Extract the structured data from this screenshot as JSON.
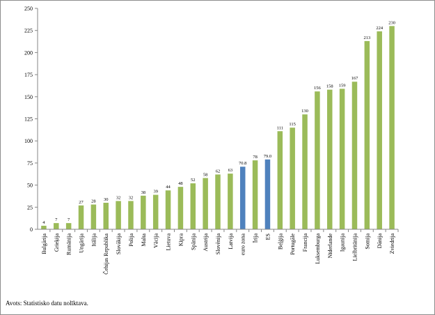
{
  "chart_data": {
    "type": "bar",
    "title": "",
    "xlabel": "",
    "ylabel": "",
    "ylim": [
      0,
      250
    ],
    "yticks": [
      0,
      25,
      50,
      75,
      100,
      125,
      150,
      175,
      200,
      225,
      250
    ],
    "grid": false,
    "legend": "none",
    "categories": [
      "Bulgārija",
      "Grieķija",
      "Rumānija",
      "Ungārija",
      "Itālija",
      "Čehijas Republika",
      "Slovākija",
      "Polija",
      "Malta",
      "Vācija",
      "Lietuva",
      "Kipra",
      "Spānija",
      "Austrija",
      "Slovēnija",
      "Latvija",
      "euro zona",
      "Īrija",
      "ES",
      "Beļģija",
      "Portugāle",
      "Francija",
      "Luksemburga",
      "Nīderlande",
      "Igaunija",
      "Lielbritānija",
      "Somija",
      "Dānija",
      "Zviedrija"
    ],
    "values": [
      4,
      7,
      7,
      27,
      28,
      30,
      32,
      32,
      38,
      39,
      44,
      48,
      52,
      58,
      62,
      63,
      70.8,
      78,
      79.0,
      111,
      115,
      130,
      156,
      158,
      159,
      167,
      213,
      224,
      230
    ],
    "value_labels": [
      "4",
      "7",
      "7",
      "27",
      "28",
      "30",
      "32",
      "32",
      "38",
      "39",
      "44",
      "48",
      "52",
      "58",
      "62",
      "63",
      "70.8",
      "78",
      "79.0",
      "111",
      "115",
      "130",
      "156",
      "158",
      "159",
      "167",
      "213",
      "224",
      "230"
    ],
    "highlight": [
      "euro zona",
      "ES"
    ],
    "colors": {
      "bar": "#9bbb59",
      "highlight": "#4f81bd",
      "axis": "#868686"
    }
  },
  "source_note": "Avots: Statistisko datu nolīktava."
}
